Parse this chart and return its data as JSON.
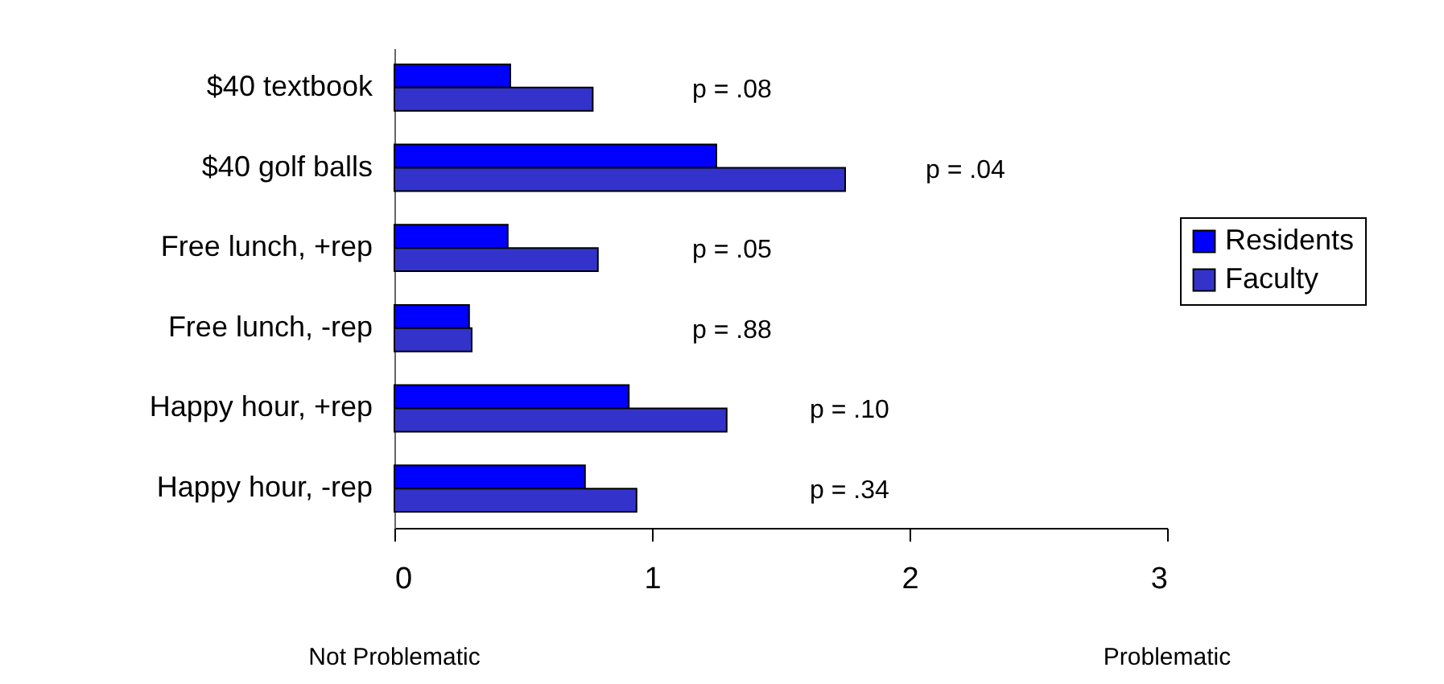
{
  "chart_data": {
    "type": "bar",
    "orientation": "horizontal",
    "categories": [
      "$40 textbook",
      "$40 golf balls",
      "Free lunch, +rep",
      "Free lunch, -rep",
      "Happy hour, +rep",
      "Happy hour, -rep"
    ],
    "series": [
      {
        "name": "Residents",
        "color": "#0000ff",
        "values": [
          0.45,
          1.25,
          0.44,
          0.29,
          0.91,
          0.74
        ]
      },
      {
        "name": "Faculty",
        "color": "#3333cc",
        "values": [
          0.77,
          1.75,
          0.79,
          0.3,
          1.29,
          0.94
        ]
      }
    ],
    "xlim": [
      0,
      3
    ],
    "xticks": [
      0,
      1,
      2,
      3
    ],
    "grid": false,
    "legend": "right",
    "annotations": [
      "p = .08",
      "p = .04",
      "p = .05",
      "p = .88",
      "p = .10",
      "p = .34",
      "Not Problematic",
      "Problematic"
    ]
  }
}
